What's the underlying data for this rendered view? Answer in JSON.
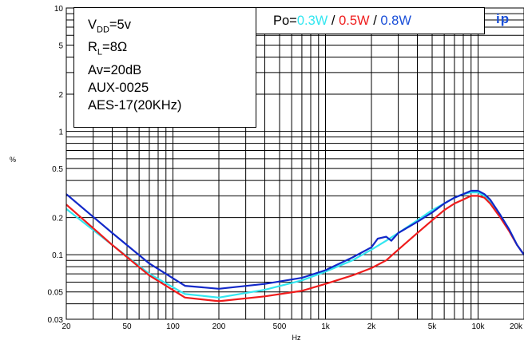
{
  "chart_data": {
    "type": "line",
    "xscale": "log",
    "yscale": "log",
    "xlim": [
      20,
      20000
    ],
    "ylim": [
      0.03,
      10
    ],
    "grid": true,
    "xlabel": "Hz",
    "ylabel": "%",
    "x_tick_labels": [
      {
        "value": 20,
        "label": "20"
      },
      {
        "value": 50,
        "label": "50"
      },
      {
        "value": 100,
        "label": "100"
      },
      {
        "value": 200,
        "label": "200"
      },
      {
        "value": 500,
        "label": "500"
      },
      {
        "value": 1000,
        "label": "1k"
      },
      {
        "value": 2000,
        "label": "2k"
      },
      {
        "value": 5000,
        "label": "5k"
      },
      {
        "value": 10000,
        "label": "10k"
      },
      {
        "value": 20000,
        "label": "20k"
      }
    ],
    "y_tick_labels": [
      {
        "value": 0.03,
        "label": "0.03"
      },
      {
        "value": 0.05,
        "label": "0.05"
      },
      {
        "value": 0.1,
        "label": "0.1"
      },
      {
        "value": 0.2,
        "label": "0.2"
      },
      {
        "value": 0.5,
        "label": "0.5"
      },
      {
        "value": 1,
        "label": "1"
      },
      {
        "value": 2,
        "label": "2"
      },
      {
        "value": 5,
        "label": "5"
      },
      {
        "value": 10,
        "label": "10"
      }
    ],
    "conditions": [
      "5v",
      "8Ω",
      "Av=20dB",
      "AUX-0025",
      "AES-17(20KHz)"
    ],
    "legend_prefix": "Po=",
    "legend_separator": " / ",
    "series": [
      {
        "name": "0.3W",
        "color": "#33e6f0",
        "points": [
          [
            20,
            0.235
          ],
          [
            40,
            0.12
          ],
          [
            70,
            0.07
          ],
          [
            120,
            0.048
          ],
          [
            200,
            0.045
          ],
          [
            400,
            0.052
          ],
          [
            700,
            0.062
          ],
          [
            1000,
            0.073
          ],
          [
            1500,
            0.09
          ],
          [
            2000,
            0.11
          ],
          [
            2500,
            0.13
          ],
          [
            3000,
            0.15
          ],
          [
            4000,
            0.19
          ],
          [
            5000,
            0.23
          ],
          [
            6000,
            0.26
          ],
          [
            7000,
            0.29
          ],
          [
            8000,
            0.31
          ],
          [
            9000,
            0.32
          ],
          [
            10000,
            0.32
          ],
          [
            11000,
            0.3
          ],
          [
            12000,
            0.27
          ],
          [
            14000,
            0.21
          ],
          [
            16000,
            0.16
          ],
          [
            18000,
            0.12
          ],
          [
            20000,
            0.1
          ]
        ]
      },
      {
        "name": "0.5W",
        "color": "#ef1c1c",
        "points": [
          [
            20,
            0.255
          ],
          [
            40,
            0.12
          ],
          [
            70,
            0.068
          ],
          [
            120,
            0.045
          ],
          [
            200,
            0.042
          ],
          [
            400,
            0.046
          ],
          [
            700,
            0.051
          ],
          [
            1000,
            0.058
          ],
          [
            1500,
            0.068
          ],
          [
            2000,
            0.078
          ],
          [
            2500,
            0.09
          ],
          [
            3000,
            0.11
          ],
          [
            4000,
            0.15
          ],
          [
            5000,
            0.19
          ],
          [
            6000,
            0.23
          ],
          [
            7000,
            0.26
          ],
          [
            8000,
            0.28
          ],
          [
            9000,
            0.3
          ],
          [
            10000,
            0.3
          ],
          [
            11000,
            0.29
          ],
          [
            12000,
            0.26
          ],
          [
            14000,
            0.2
          ],
          [
            16000,
            0.155
          ],
          [
            18000,
            0.12
          ],
          [
            20000,
            0.1
          ]
        ]
      },
      {
        "name": "0.8W",
        "color": "#1228c8",
        "points": [
          [
            20,
            0.31
          ],
          [
            40,
            0.15
          ],
          [
            70,
            0.085
          ],
          [
            120,
            0.056
          ],
          [
            200,
            0.053
          ],
          [
            400,
            0.058
          ],
          [
            700,
            0.065
          ],
          [
            1000,
            0.075
          ],
          [
            1500,
            0.095
          ],
          [
            2000,
            0.115
          ],
          [
            2200,
            0.135
          ],
          [
            2500,
            0.14
          ],
          [
            2700,
            0.13
          ],
          [
            3000,
            0.15
          ],
          [
            4000,
            0.185
          ],
          [
            5000,
            0.22
          ],
          [
            6000,
            0.26
          ],
          [
            7000,
            0.29
          ],
          [
            8000,
            0.31
          ],
          [
            9000,
            0.33
          ],
          [
            10000,
            0.33
          ],
          [
            11000,
            0.31
          ],
          [
            12000,
            0.28
          ],
          [
            14000,
            0.21
          ],
          [
            16000,
            0.16
          ],
          [
            18000,
            0.12
          ],
          [
            20000,
            0.1
          ]
        ]
      }
    ]
  },
  "brand_fragment": "ip"
}
